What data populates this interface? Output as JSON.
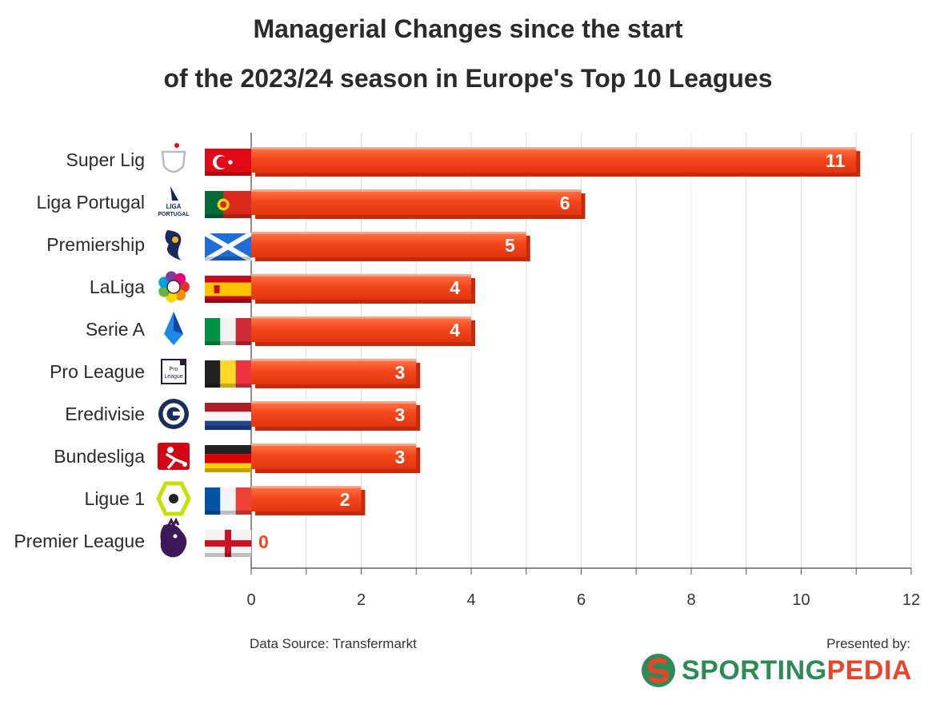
{
  "header": {
    "title_line1": "Managerial Changes since the start",
    "title_line2": "of the 2023/24 season in Europe's Top 10 Leagues"
  },
  "chart_data": {
    "type": "bar",
    "orientation": "horizontal",
    "categories": [
      "Super Lig",
      "Liga Portugal",
      "Premiership",
      "LaLiga",
      "Serie A",
      "Pro League",
      "Eredivisie",
      "Bundesliga",
      "Ligue 1",
      "Premier League"
    ],
    "values": [
      11,
      6,
      5,
      4,
      4,
      3,
      3,
      3,
      2,
      0
    ],
    "value_labels": [
      "11",
      "6",
      "5",
      "4",
      "4",
      "3",
      "3",
      "3",
      "2",
      "0"
    ],
    "xlim": [
      0,
      12
    ],
    "x_ticks": [
      "0",
      "2",
      "4",
      "6",
      "8",
      "10",
      "12"
    ],
    "grid": "vertical",
    "bar_color": "#f5471d",
    "logo_icons": [
      "super-lig-logo-icon",
      "liga-portugal-logo-icon",
      "spfl-premiership-logo-icon",
      "laliga-logo-icon",
      "serie-a-logo-icon",
      "pro-league-logo-icon",
      "eredivisie-logo-icon",
      "bundesliga-logo-icon",
      "ligue-1-logo-icon",
      "premier-league-logo-icon"
    ],
    "flag_icons": [
      "turkey-flag-icon",
      "portugal-flag-icon",
      "scotland-flag-icon",
      "spain-flag-icon",
      "italy-flag-icon",
      "belgium-flag-icon",
      "netherlands-flag-icon",
      "germany-flag-icon",
      "france-flag-icon",
      "england-flag-icon"
    ]
  },
  "footer": {
    "source": "Data Source: Transfermarkt",
    "presented_by": "Presented by:",
    "brand_part1": "SPORTING",
    "brand_part2": "PEDIA",
    "brand_icon": "sportingpedia-logo-icon"
  }
}
